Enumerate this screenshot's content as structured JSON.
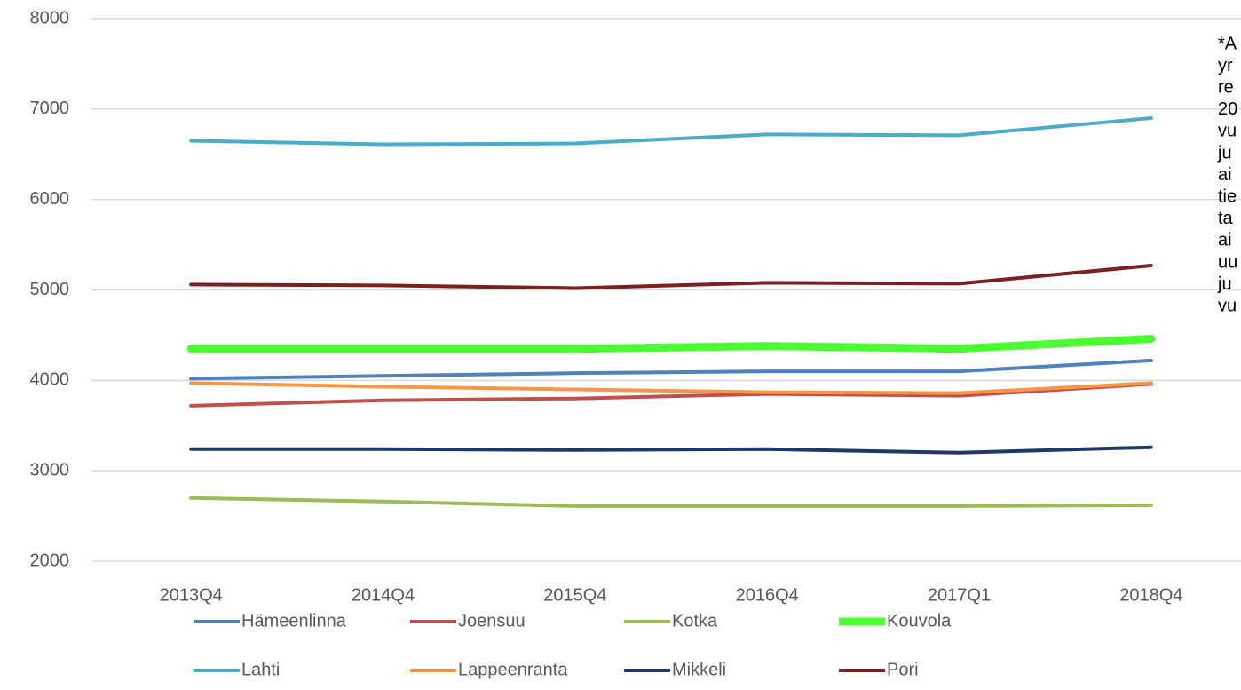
{
  "chart_data": {
    "type": "line",
    "categories": [
      "2013Q4",
      "2014Q4",
      "2015Q4",
      "2016Q4",
      "2017Q1",
      "2018Q4"
    ],
    "series": [
      {
        "name": "Hämeenlinna",
        "color": "#4f81bd",
        "linewidth": 4,
        "values": [
          4020,
          4050,
          4080,
          4100,
          4100,
          4220
        ]
      },
      {
        "name": "Joensuu",
        "color": "#c0504d",
        "linewidth": 4,
        "values": [
          3720,
          3780,
          3800,
          3850,
          3830,
          3960
        ]
      },
      {
        "name": "Kotka",
        "color": "#9bbb59",
        "linewidth": 4,
        "values": [
          2700,
          2660,
          2610,
          2610,
          2610,
          2620
        ]
      },
      {
        "name": "Kouvola",
        "color": "#4cff33",
        "linewidth": 9,
        "values": [
          4350,
          4350,
          4350,
          4380,
          4350,
          4460
        ]
      },
      {
        "name": "Lahti",
        "color": "#4bacc6",
        "linewidth": 4,
        "values": [
          6650,
          6610,
          6620,
          6720,
          6710,
          6900
        ]
      },
      {
        "name": "Lappeenranta",
        "color": "#f79646",
        "linewidth": 4,
        "values": [
          3970,
          3930,
          3900,
          3870,
          3860,
          3970
        ]
      },
      {
        "name": "Mikkeli",
        "color": "#1f3864",
        "linewidth": 4,
        "values": [
          3240,
          3240,
          3230,
          3240,
          3200,
          3260
        ]
      },
      {
        "name": "Pori",
        "color": "#7b2020",
        "linewidth": 4,
        "values": [
          5060,
          5050,
          5020,
          5080,
          5070,
          5270
        ]
      }
    ],
    "ylim": [
      2000,
      8000
    ],
    "yticks": [
      2000,
      3000,
      4000,
      5000,
      6000,
      7000,
      8000
    ],
    "grid": true,
    "annotation": [
      "*A",
      "yr",
      "re",
      "20",
      "vu",
      "ju",
      "ai",
      "tie",
      "ta",
      "ai",
      "uu",
      "ju",
      "vu"
    ]
  }
}
